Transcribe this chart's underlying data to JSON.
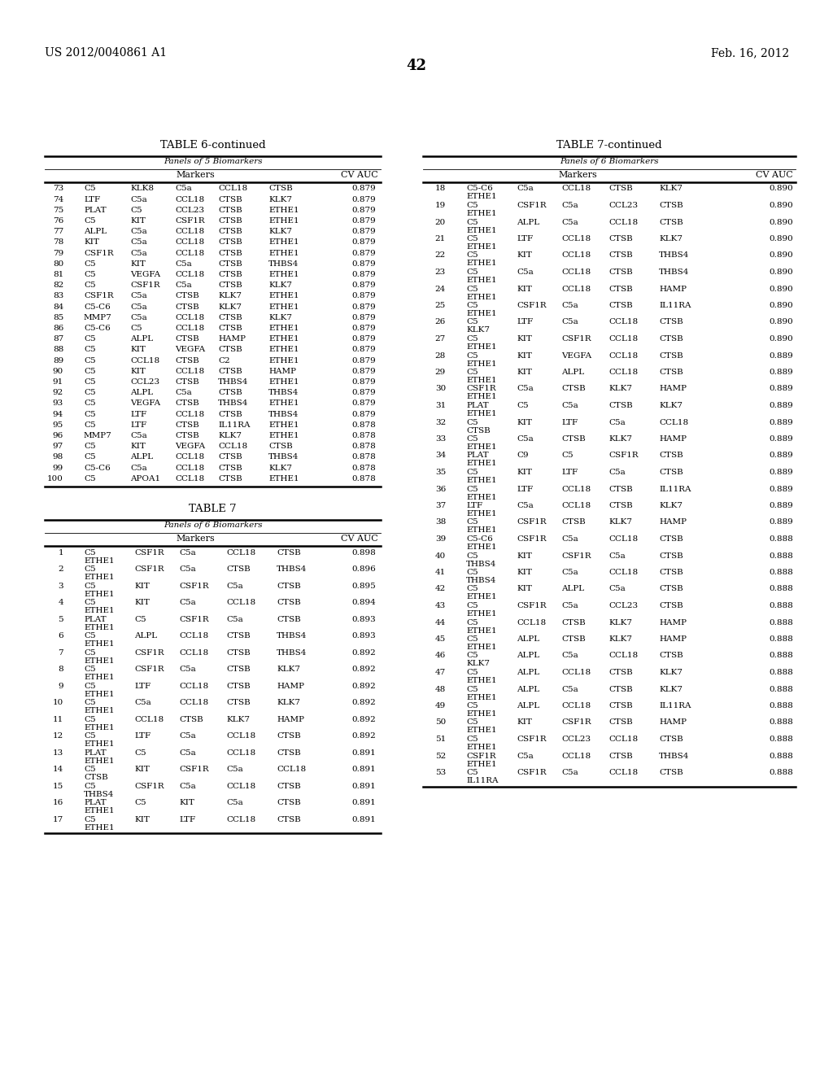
{
  "header_left": "US 2012/0040861 A1",
  "header_right": "Feb. 16, 2012",
  "page_number": "42",
  "table6_title": "TABLE 6-continued",
  "table6_subtitle": "Panels of 5 Biomarkers",
  "table6_rows": [
    [
      "73",
      "C5",
      "KLK8",
      "C5a",
      "CCL18",
      "CTSB",
      "0.879"
    ],
    [
      "74",
      "LTF",
      "C5a",
      "CCL18",
      "CTSB",
      "KLK7",
      "0.879"
    ],
    [
      "75",
      "PLAT",
      "C5",
      "CCL23",
      "CTSB",
      "ETHE1",
      "0.879"
    ],
    [
      "76",
      "C5",
      "KIT",
      "CSF1R",
      "CTSB",
      "ETHE1",
      "0.879"
    ],
    [
      "77",
      "ALPL",
      "C5a",
      "CCL18",
      "CTSB",
      "KLK7",
      "0.879"
    ],
    [
      "78",
      "KIT",
      "C5a",
      "CCL18",
      "CTSB",
      "ETHE1",
      "0.879"
    ],
    [
      "79",
      "CSF1R",
      "C5a",
      "CCL18",
      "CTSB",
      "ETHE1",
      "0.879"
    ],
    [
      "80",
      "C5",
      "KIT",
      "C5a",
      "CTSB",
      "THBS4",
      "0.879"
    ],
    [
      "81",
      "C5",
      "VEGFA",
      "CCL18",
      "CTSB",
      "ETHE1",
      "0.879"
    ],
    [
      "82",
      "C5",
      "CSF1R",
      "C5a",
      "CTSB",
      "KLK7",
      "0.879"
    ],
    [
      "83",
      "CSF1R",
      "C5a",
      "CTSB",
      "KLK7",
      "ETHE1",
      "0.879"
    ],
    [
      "84",
      "C5-C6",
      "C5a",
      "CTSB",
      "KLK7",
      "ETHE1",
      "0.879"
    ],
    [
      "85",
      "MMP7",
      "C5a",
      "CCL18",
      "CTSB",
      "KLK7",
      "0.879"
    ],
    [
      "86",
      "C5-C6",
      "C5",
      "CCL18",
      "CTSB",
      "ETHE1",
      "0.879"
    ],
    [
      "87",
      "C5",
      "ALPL",
      "CTSB",
      "HAMP",
      "ETHE1",
      "0.879"
    ],
    [
      "88",
      "C5",
      "KIT",
      "VEGFA",
      "CTSB",
      "ETHE1",
      "0.879"
    ],
    [
      "89",
      "C5",
      "CCL18",
      "CTSB",
      "C2",
      "ETHE1",
      "0.879"
    ],
    [
      "90",
      "C5",
      "KIT",
      "CCL18",
      "CTSB",
      "HAMP",
      "0.879"
    ],
    [
      "91",
      "C5",
      "CCL23",
      "CTSB",
      "THBS4",
      "ETHE1",
      "0.879"
    ],
    [
      "92",
      "C5",
      "ALPL",
      "C5a",
      "CTSB",
      "THBS4",
      "0.879"
    ],
    [
      "93",
      "C5",
      "VEGFA",
      "CTSB",
      "THBS4",
      "ETHE1",
      "0.879"
    ],
    [
      "94",
      "C5",
      "LTF",
      "CCL18",
      "CTSB",
      "THBS4",
      "0.879"
    ],
    [
      "95",
      "C5",
      "LTF",
      "CTSB",
      "IL11RA",
      "ETHE1",
      "0.878"
    ],
    [
      "96",
      "MMP7",
      "C5a",
      "CTSB",
      "KLK7",
      "ETHE1",
      "0.878"
    ],
    [
      "97",
      "C5",
      "KIT",
      "VEGFA",
      "CCL18",
      "CTSB",
      "0.878"
    ],
    [
      "98",
      "C5",
      "ALPL",
      "CCL18",
      "CTSB",
      "THBS4",
      "0.878"
    ],
    [
      "99",
      "C5-C6",
      "C5a",
      "CCL18",
      "CTSB",
      "KLK7",
      "0.878"
    ],
    [
      "100",
      "C5",
      "APOA1",
      "CCL18",
      "CTSB",
      "ETHE1",
      "0.878"
    ]
  ],
  "table7_title": "TABLE 7",
  "table7_subtitle": "Panels of 6 Biomarkers",
  "table7_rows": [
    [
      "1",
      "C5",
      "ETHE1",
      "CSF1R",
      "C5a",
      "CCL18",
      "CTSB",
      "0.898"
    ],
    [
      "2",
      "C5",
      "ETHE1",
      "CSF1R",
      "C5a",
      "CTSB",
      "THBS4",
      "0.896"
    ],
    [
      "3",
      "C5",
      "ETHE1",
      "KIT",
      "CSF1R",
      "C5a",
      "CTSB",
      "0.895"
    ],
    [
      "4",
      "C5",
      "ETHE1",
      "KIT",
      "C5a",
      "CCL18",
      "CTSB",
      "0.894"
    ],
    [
      "5",
      "PLAT",
      "ETHE1",
      "C5",
      "CSF1R",
      "C5a",
      "CTSB",
      "0.893"
    ],
    [
      "6",
      "C5",
      "ETHE1",
      "ALPL",
      "CCL18",
      "CTSB",
      "THBS4",
      "0.893"
    ],
    [
      "7",
      "C5",
      "ETHE1",
      "CSF1R",
      "CCL18",
      "CTSB",
      "THBS4",
      "0.892"
    ],
    [
      "8",
      "C5",
      "ETHE1",
      "CSF1R",
      "C5a",
      "CTSB",
      "KLK7",
      "0.892"
    ],
    [
      "9",
      "C5",
      "ETHE1",
      "LTF",
      "CCL18",
      "CTSB",
      "HAMP",
      "0.892"
    ],
    [
      "10",
      "C5",
      "ETHE1",
      "C5a",
      "CCL18",
      "CTSB",
      "KLK7",
      "0.892"
    ],
    [
      "11",
      "C5",
      "ETHE1",
      "CCL18",
      "CTSB",
      "KLK7",
      "HAMP",
      "0.892"
    ],
    [
      "12",
      "C5",
      "ETHE1",
      "LTF",
      "C5a",
      "CCL18",
      "CTSB",
      "0.892"
    ],
    [
      "13",
      "PLAT",
      "ETHE1",
      "C5",
      "C5a",
      "CCL18",
      "CTSB",
      "0.891"
    ],
    [
      "14",
      "C5",
      "CTSB",
      "KIT",
      "CSF1R",
      "C5a",
      "CCL18",
      "0.891"
    ],
    [
      "15",
      "C5",
      "THBS4",
      "CSF1R",
      "C5a",
      "CCL18",
      "CTSB",
      "0.891"
    ],
    [
      "16",
      "PLAT",
      "ETHE1",
      "C5",
      "KIT",
      "C5a",
      "CTSB",
      "0.891"
    ],
    [
      "17",
      "C5",
      "ETHE1",
      "KIT",
      "LTF",
      "CCL18",
      "CTSB",
      "0.891"
    ]
  ],
  "table7cont_title": "TABLE 7-continued",
  "table7cont_subtitle": "Panels of 6 Biomarkers",
  "table7cont_rows": [
    [
      "18",
      "C5-C6",
      "ETHE1",
      "C5a",
      "CCL18",
      "CTSB",
      "KLK7",
      "0.890"
    ],
    [
      "19",
      "C5",
      "ETHE1",
      "CSF1R",
      "C5a",
      "CCL23",
      "CTSB",
      "0.890"
    ],
    [
      "20",
      "C5",
      "ETHE1",
      "ALPL",
      "C5a",
      "CCL18",
      "CTSB",
      "0.890"
    ],
    [
      "21",
      "C5",
      "ETHE1",
      "LTF",
      "CCL18",
      "CTSB",
      "KLK7",
      "0.890"
    ],
    [
      "22",
      "C5",
      "ETHE1",
      "KIT",
      "CCL18",
      "CTSB",
      "THBS4",
      "0.890"
    ],
    [
      "23",
      "C5",
      "ETHE1",
      "C5a",
      "CCL18",
      "CTSB",
      "THBS4",
      "0.890"
    ],
    [
      "24",
      "C5",
      "ETHE1",
      "KIT",
      "CCL18",
      "CTSB",
      "HAMP",
      "0.890"
    ],
    [
      "25",
      "C5",
      "ETHE1",
      "CSF1R",
      "C5a",
      "CTSB",
      "IL11RA",
      "0.890"
    ],
    [
      "26",
      "C5",
      "KLK7",
      "LTF",
      "C5a",
      "CCL18",
      "CTSB",
      "0.890"
    ],
    [
      "27",
      "C5",
      "ETHE1",
      "KIT",
      "CSF1R",
      "CCL18",
      "CTSB",
      "0.890"
    ],
    [
      "28",
      "C5",
      "ETHE1",
      "KIT",
      "VEGFA",
      "CCL18",
      "CTSB",
      "0.889"
    ],
    [
      "29",
      "C5",
      "ETHE1",
      "KIT",
      "ALPL",
      "CCL18",
      "CTSB",
      "0.889"
    ],
    [
      "30",
      "CSF1R",
      "ETHE1",
      "C5a",
      "CTSB",
      "KLK7",
      "HAMP",
      "0.889"
    ],
    [
      "31",
      "PLAT",
      "ETHE1",
      "C5",
      "C5a",
      "CTSB",
      "KLK7",
      "0.889"
    ],
    [
      "32",
      "C5",
      "CTSB",
      "KIT",
      "LTF",
      "C5a",
      "CCL18",
      "0.889"
    ],
    [
      "33",
      "C5",
      "ETHE1",
      "C5a",
      "CTSB",
      "KLK7",
      "HAMP",
      "0.889"
    ],
    [
      "34",
      "PLAT",
      "ETHE1",
      "C9",
      "C5",
      "CSF1R",
      "CTSB",
      "0.889"
    ],
    [
      "35",
      "C5",
      "ETHE1",
      "KIT",
      "LTF",
      "C5a",
      "CTSB",
      "0.889"
    ],
    [
      "36",
      "C5",
      "ETHE1",
      "LTF",
      "CCL18",
      "CTSB",
      "IL11RA",
      "0.889"
    ],
    [
      "37",
      "LTF",
      "ETHE1",
      "C5a",
      "CCL18",
      "CTSB",
      "KLK7",
      "0.889"
    ],
    [
      "38",
      "C5",
      "ETHE1",
      "CSF1R",
      "CTSB",
      "KLK7",
      "HAMP",
      "0.889"
    ],
    [
      "39",
      "C5-C6",
      "ETHE1",
      "CSF1R",
      "C5a",
      "CCL18",
      "CTSB",
      "0.888"
    ],
    [
      "40",
      "C5",
      "THBS4",
      "KIT",
      "CSF1R",
      "C5a",
      "CTSB",
      "0.888"
    ],
    [
      "41",
      "C5",
      "THBS4",
      "KIT",
      "C5a",
      "CCL18",
      "CTSB",
      "0.888"
    ],
    [
      "42",
      "C5",
      "ETHE1",
      "KIT",
      "ALPL",
      "C5a",
      "CTSB",
      "0.888"
    ],
    [
      "43",
      "C5",
      "ETHE1",
      "CSF1R",
      "C5a",
      "CCL23",
      "CTSB",
      "0.888"
    ],
    [
      "44",
      "C5",
      "ETHE1",
      "CCL18",
      "CTSB",
      "KLK7",
      "HAMP",
      "0.888"
    ],
    [
      "45",
      "C5",
      "ETHE1",
      "ALPL",
      "CTSB",
      "KLK7",
      "HAMP",
      "0.888"
    ],
    [
      "46",
      "C5",
      "KLK7",
      "ALPL",
      "C5a",
      "CCL18",
      "CTSB",
      "0.888"
    ],
    [
      "47",
      "C5",
      "ETHE1",
      "ALPL",
      "CCL18",
      "CTSB",
      "KLK7",
      "0.888"
    ],
    [
      "48",
      "C5",
      "ETHE1",
      "ALPL",
      "C5a",
      "CTSB",
      "KLK7",
      "0.888"
    ],
    [
      "49",
      "C5",
      "ETHE1",
      "ALPL",
      "CCL18",
      "CTSB",
      "IL11RA",
      "0.888"
    ],
    [
      "50",
      "C5",
      "ETHE1",
      "KIT",
      "CSF1R",
      "CTSB",
      "HAMP",
      "0.888"
    ],
    [
      "51",
      "C5",
      "ETHE1",
      "CSF1R",
      "CCL23",
      "CCL18",
      "CTSB",
      "0.888"
    ],
    [
      "52",
      "CSF1R",
      "ETHE1",
      "C5a",
      "CCL18",
      "CTSB",
      "THBS4",
      "0.888"
    ],
    [
      "53",
      "C5",
      "IL11RA",
      "CSF1R",
      "C5a",
      "CCL18",
      "CTSB",
      "0.888"
    ]
  ]
}
